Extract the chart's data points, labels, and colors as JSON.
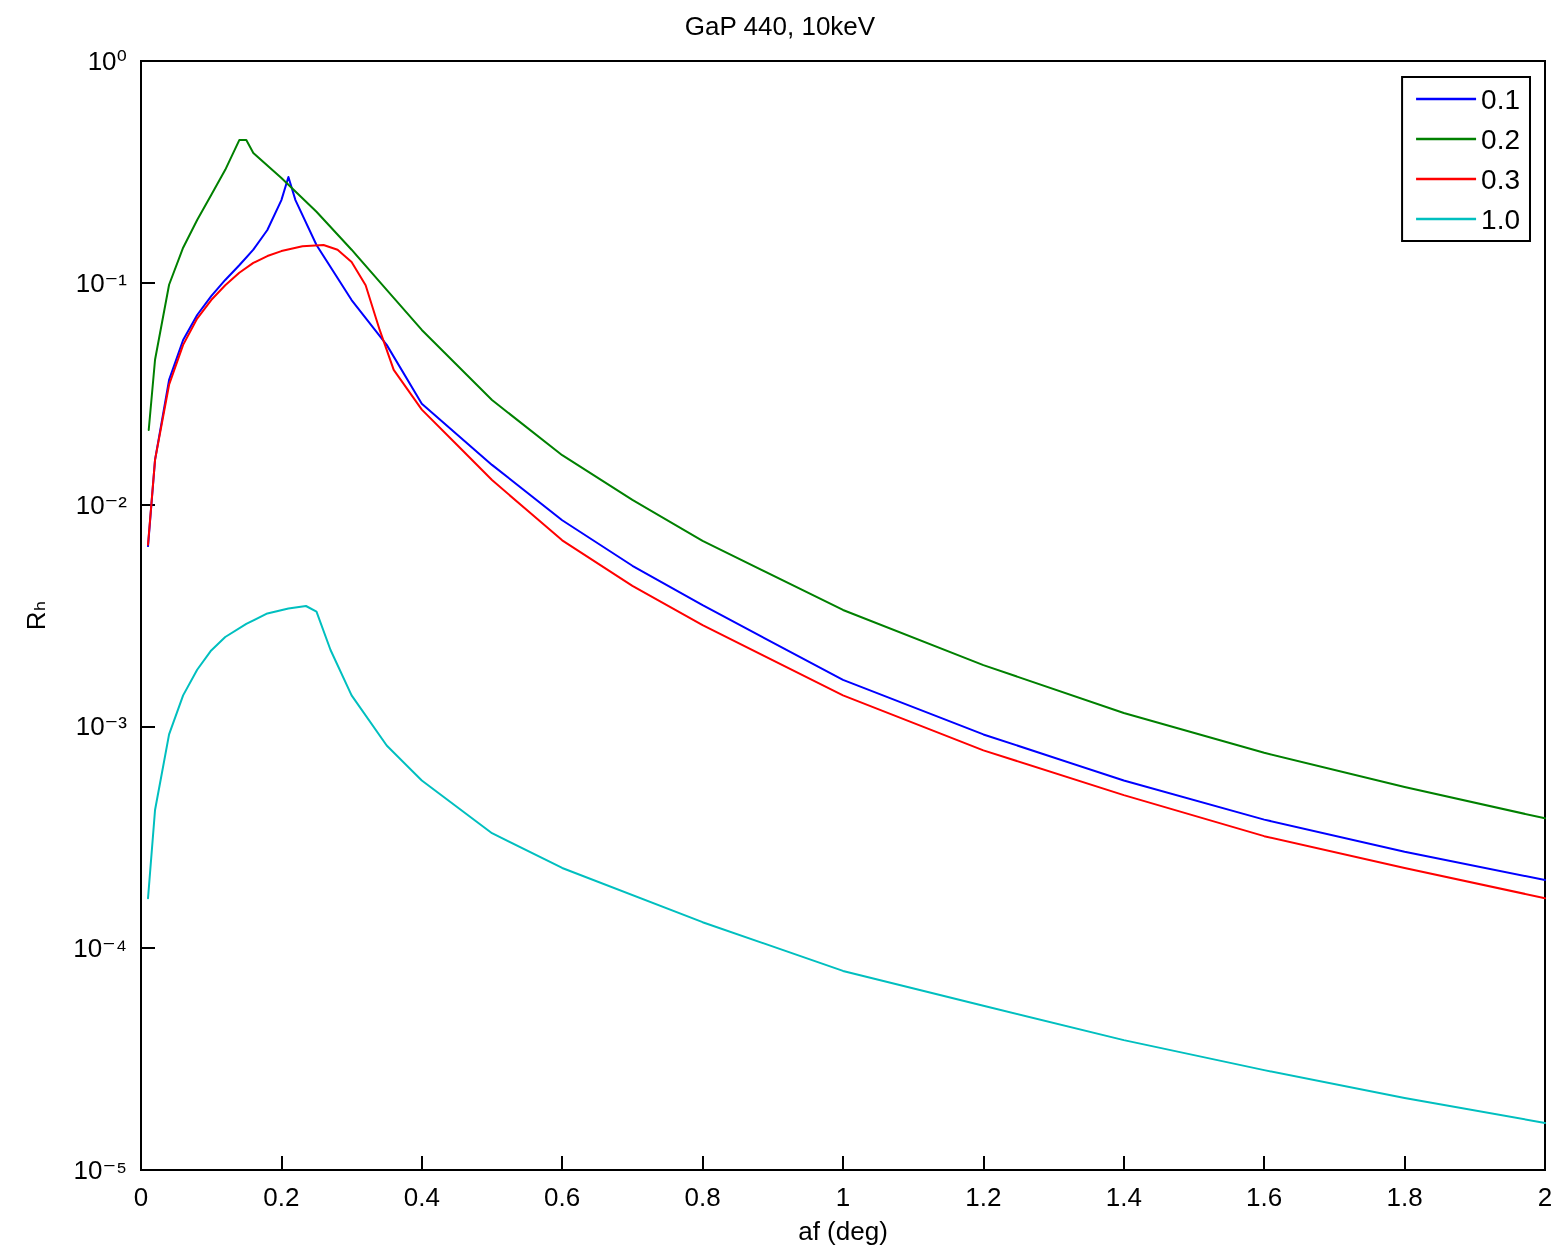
{
  "chart_data": {
    "type": "line",
    "title": "GaP 440, 10keV",
    "xlabel": "af (deg)",
    "ylabel": "Rₕ",
    "log": "y",
    "grid": false,
    "legend": "top right",
    "xlim": [
      0,
      2
    ],
    "xticks": [
      0,
      0.2,
      0.4,
      0.6,
      0.8,
      1,
      1.2,
      1.4,
      1.6,
      1.8,
      2
    ],
    "ylim": [
      1e-05,
      1
    ],
    "yticks": [
      {
        "value": 1e-05,
        "label": "10⁻⁵"
      },
      {
        "value": 0.0001,
        "label": "10⁻⁴"
      },
      {
        "value": 0.001,
        "label": "10⁻³"
      },
      {
        "value": 0.01,
        "label": "10⁻²"
      },
      {
        "value": 0.1,
        "label": "10⁻¹"
      },
      {
        "value": 1,
        "label": "10⁰"
      }
    ],
    "series": [
      {
        "name": "0.1",
        "color": "#0000ff",
        "x": [
          0.01,
          0.02,
          0.04,
          0.06,
          0.08,
          0.1,
          0.12,
          0.14,
          0.16,
          0.18,
          0.2,
          0.21,
          0.22,
          0.25,
          0.3,
          0.35,
          0.4,
          0.5,
          0.6,
          0.7,
          0.8,
          1.0,
          1.2,
          1.4,
          1.6,
          1.8,
          2.0
        ],
        "values": [
          0.0065,
          0.0159,
          0.0365,
          0.0552,
          0.0716,
          0.087,
          0.103,
          0.12,
          0.141,
          0.173,
          0.236,
          0.3,
          0.236,
          0.148,
          0.0836,
          0.0525,
          0.0285,
          0.0151,
          0.0085,
          0.0053,
          0.00352,
          0.00162,
          0.00092,
          0.00057,
          0.00038,
          0.000272,
          0.000203
        ]
      },
      {
        "name": "0.2",
        "color": "#008000",
        "x": [
          0.011,
          0.02,
          0.04,
          0.06,
          0.08,
          0.1,
          0.12,
          0.14,
          0.15,
          0.16,
          0.2,
          0.25,
          0.3,
          0.35,
          0.4,
          0.5,
          0.6,
          0.7,
          0.8,
          1.0,
          1.2,
          1.4,
          1.6,
          1.8,
          2.0
        ],
        "values": [
          0.0217,
          0.045,
          0.098,
          0.144,
          0.192,
          0.249,
          0.323,
          0.44,
          0.44,
          0.385,
          0.297,
          0.209,
          0.141,
          0.093,
          0.0613,
          0.0296,
          0.0167,
          0.0105,
          0.00686,
          0.00335,
          0.00189,
          0.00115,
          0.00076,
          0.000533,
          0.000385
        ]
      },
      {
        "name": "0.3",
        "color": "#ff0000",
        "x": [
          0.01,
          0.02,
          0.04,
          0.06,
          0.08,
          0.1,
          0.12,
          0.14,
          0.16,
          0.18,
          0.2,
          0.23,
          0.26,
          0.28,
          0.3,
          0.32,
          0.34,
          0.36,
          0.4,
          0.45,
          0.5,
          0.6,
          0.7,
          0.8,
          1.0,
          1.2,
          1.4,
          1.6,
          1.8,
          2.0
        ],
        "values": [
          0.0066,
          0.0159,
          0.0347,
          0.0525,
          0.069,
          0.0836,
          0.0975,
          0.111,
          0.123,
          0.132,
          0.139,
          0.146,
          0.148,
          0.141,
          0.124,
          0.0975,
          0.0613,
          0.0405,
          0.0268,
          0.0186,
          0.0129,
          0.0069,
          0.0043,
          0.00286,
          0.00138,
          0.00078,
          0.00049,
          0.00032,
          0.00023,
          0.000168
        ]
      },
      {
        "name": "1.0",
        "color": "#00bfbf",
        "x": [
          0.01,
          0.02,
          0.04,
          0.06,
          0.08,
          0.1,
          0.12,
          0.15,
          0.18,
          0.21,
          0.235,
          0.25,
          0.27,
          0.3,
          0.35,
          0.4,
          0.5,
          0.6,
          0.8,
          1.0,
          1.2,
          1.4,
          1.6,
          1.8,
          2.0
        ],
        "values": [
          0.000168,
          0.00042,
          0.00092,
          0.00138,
          0.0018,
          0.0022,
          0.00253,
          0.0029,
          0.00323,
          0.0034,
          0.00349,
          0.00329,
          0.00221,
          0.00138,
          0.00082,
          0.00057,
          0.00033,
          0.00023,
          0.000131,
          7.9e-05,
          5.5e-05,
          3.85e-05,
          2.82e-05,
          2.11e-05,
          1.63e-05
        ]
      }
    ]
  }
}
